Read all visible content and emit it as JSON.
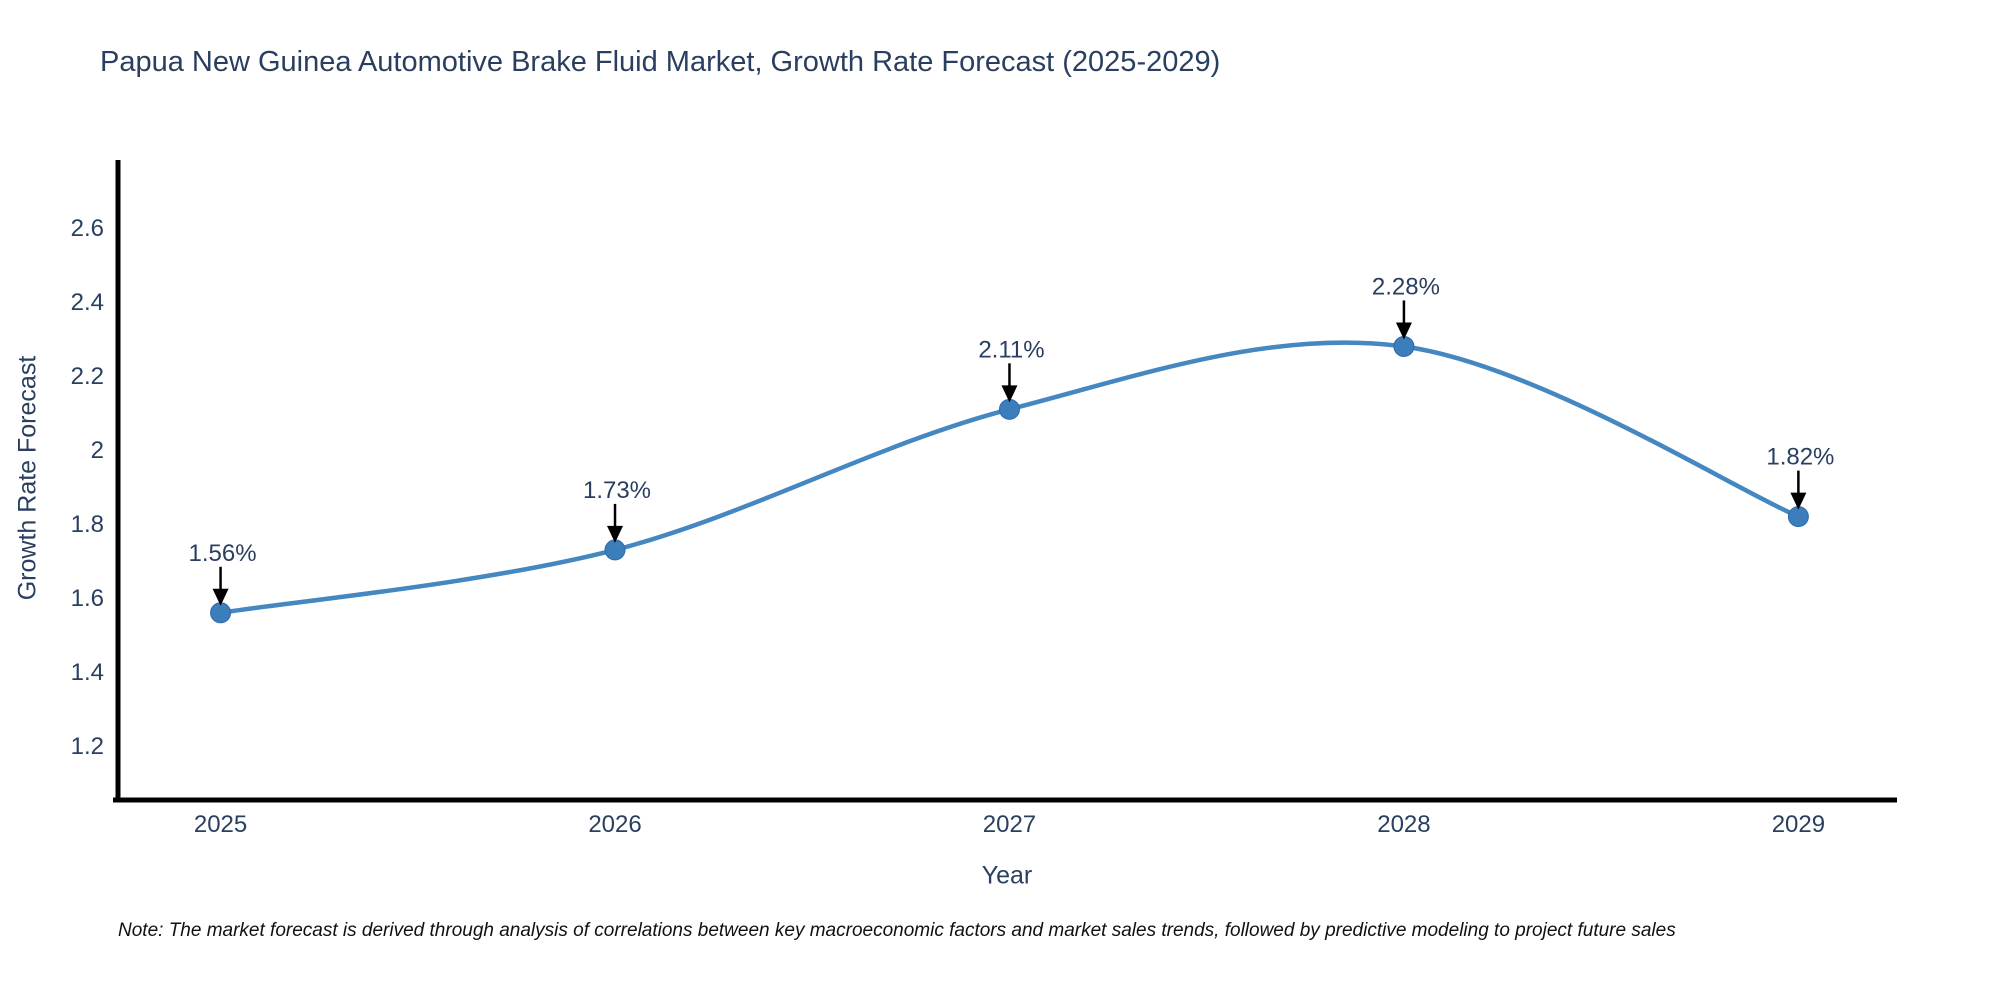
{
  "title": "Papua New Guinea Automotive Brake Fluid Market, Growth Rate Forecast (2025-2029)",
  "note": "Note: The market forecast is derived through analysis of correlations between key macroeconomic factors and market sales trends, followed by predictive modeling to project future sales",
  "chart_data": {
    "type": "line",
    "title": "Papua New Guinea Automotive Brake Fluid Market, Growth Rate Forecast (2025-2029)",
    "xlabel": "Year",
    "ylabel": "Growth Rate Forecast",
    "categories": [
      2025,
      2026,
      2027,
      2028,
      2029
    ],
    "series": [
      {
        "name": "Growth Rate Forecast",
        "values": [
          1.56,
          1.73,
          2.11,
          2.28,
          1.82
        ],
        "point_labels": [
          "1.56%",
          "1.73%",
          "2.11%",
          "2.28%",
          "1.82%"
        ]
      }
    ],
    "yticks": [
      1.2,
      1.4,
      1.6,
      1.8,
      2,
      2.2,
      2.4,
      2.6
    ],
    "ylim": [
      1.054,
      2.784
    ],
    "xlim": [
      2024.74,
      2029.25
    ],
    "grid": false,
    "legend": false,
    "line_shape": "spline",
    "annotations_have_arrows": true,
    "colors": {
      "line": "#4487c1",
      "marker": "#3c7dbc",
      "marker_edge": "#2f6ba6",
      "axis": "#000000",
      "text": "#2a3f5f",
      "arrow": "#000000",
      "note_text": "#111111",
      "background": "#ffffff"
    }
  }
}
